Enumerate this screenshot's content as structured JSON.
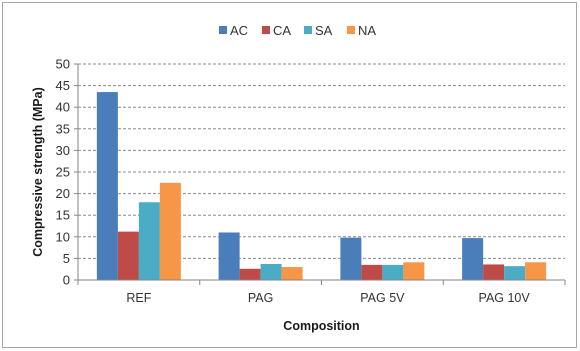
{
  "chart_data": {
    "type": "bar",
    "title": "",
    "xlabel": "Composition",
    "ylabel": "Compressive strength (MPa)",
    "ylim": [
      0,
      50
    ],
    "yticks": [
      0,
      5,
      10,
      15,
      20,
      25,
      30,
      35,
      40,
      45,
      50
    ],
    "grid": "horizontal dashed",
    "legend_position": "top",
    "categories": [
      "REF",
      "PAG",
      "PAG 5V",
      "PAG 10V"
    ],
    "series": [
      {
        "name": "AC",
        "color": "#4a7ebb",
        "values": [
          43.5,
          11.0,
          9.8,
          9.7
        ]
      },
      {
        "name": "CA",
        "color": "#be4b48",
        "values": [
          11.2,
          2.6,
          3.5,
          3.6
        ]
      },
      {
        "name": "SA",
        "color": "#4bacc6",
        "values": [
          18.0,
          3.7,
          3.5,
          3.2
        ]
      },
      {
        "name": "NA",
        "color": "#f79646",
        "values": [
          22.5,
          3.0,
          4.1,
          4.1
        ]
      }
    ]
  }
}
